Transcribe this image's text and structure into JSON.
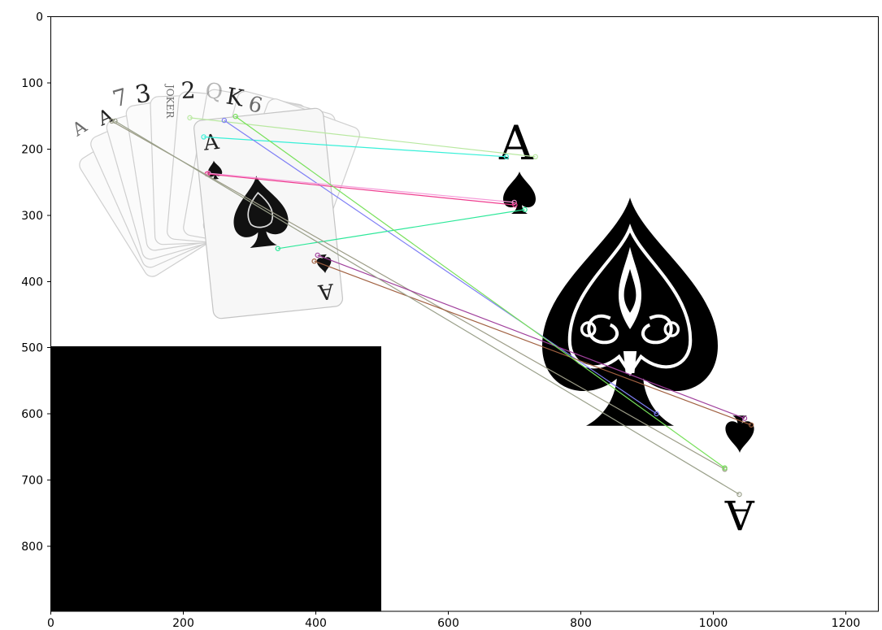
{
  "chart_data": {
    "type": "image",
    "x_ticks": [
      "0",
      "200",
      "400",
      "600",
      "800",
      "1000",
      "1200"
    ],
    "y_ticks": [
      "0",
      "100",
      "200",
      "300",
      "400",
      "500",
      "600",
      "700",
      "800"
    ],
    "xlim": [
      0,
      1250
    ],
    "ylim": [
      900,
      0
    ],
    "card_labels": [
      "A",
      "A",
      "7",
      "3",
      "JOKER",
      "2",
      "Q",
      "K",
      "6"
    ],
    "ace_label": "A",
    "match_color_names": [
      "light-green",
      "cyan",
      "blue-violet",
      "pink",
      "magenta",
      "spring-green",
      "olive-gray",
      "purple",
      "brown",
      "lime",
      "olive-gray-2"
    ],
    "matches": [
      {
        "from": [
          210,
          153
        ],
        "to": [
          732,
          212
        ],
        "color": "#b8e8a0"
      },
      {
        "from": [
          231,
          182
        ],
        "to": [
          688,
          212
        ],
        "color": "#38f0d8"
      },
      {
        "from": [
          262,
          157
        ],
        "to": [
          915,
          601
        ],
        "color": "#7f7ff5"
      },
      {
        "from": [
          238,
          237
        ],
        "to": [
          700,
          281
        ],
        "color": "#f59ad8"
      },
      {
        "from": [
          236,
          238
        ],
        "to": [
          701,
          285
        ],
        "color": "#ef3d8f"
      },
      {
        "from": [
          343,
          351
        ],
        "to": [
          716,
          292
        ],
        "color": "#2de89a"
      },
      {
        "from": [
          92,
          158
        ],
        "to": [
          1018,
          685
        ],
        "color": "#9c9c87"
      },
      {
        "from": [
          403,
          361
        ],
        "to": [
          1048,
          608
        ],
        "color": "#a0409c"
      },
      {
        "from": [
          398,
          370
        ],
        "to": [
          1058,
          618
        ],
        "color": "#a06040"
      },
      {
        "from": [
          279,
          151
        ],
        "to": [
          1018,
          683
        ],
        "color": "#77e05a"
      },
      {
        "from": [
          97,
          158
        ],
        "to": [
          1040,
          723
        ],
        "color": "#9aa08a"
      }
    ]
  }
}
